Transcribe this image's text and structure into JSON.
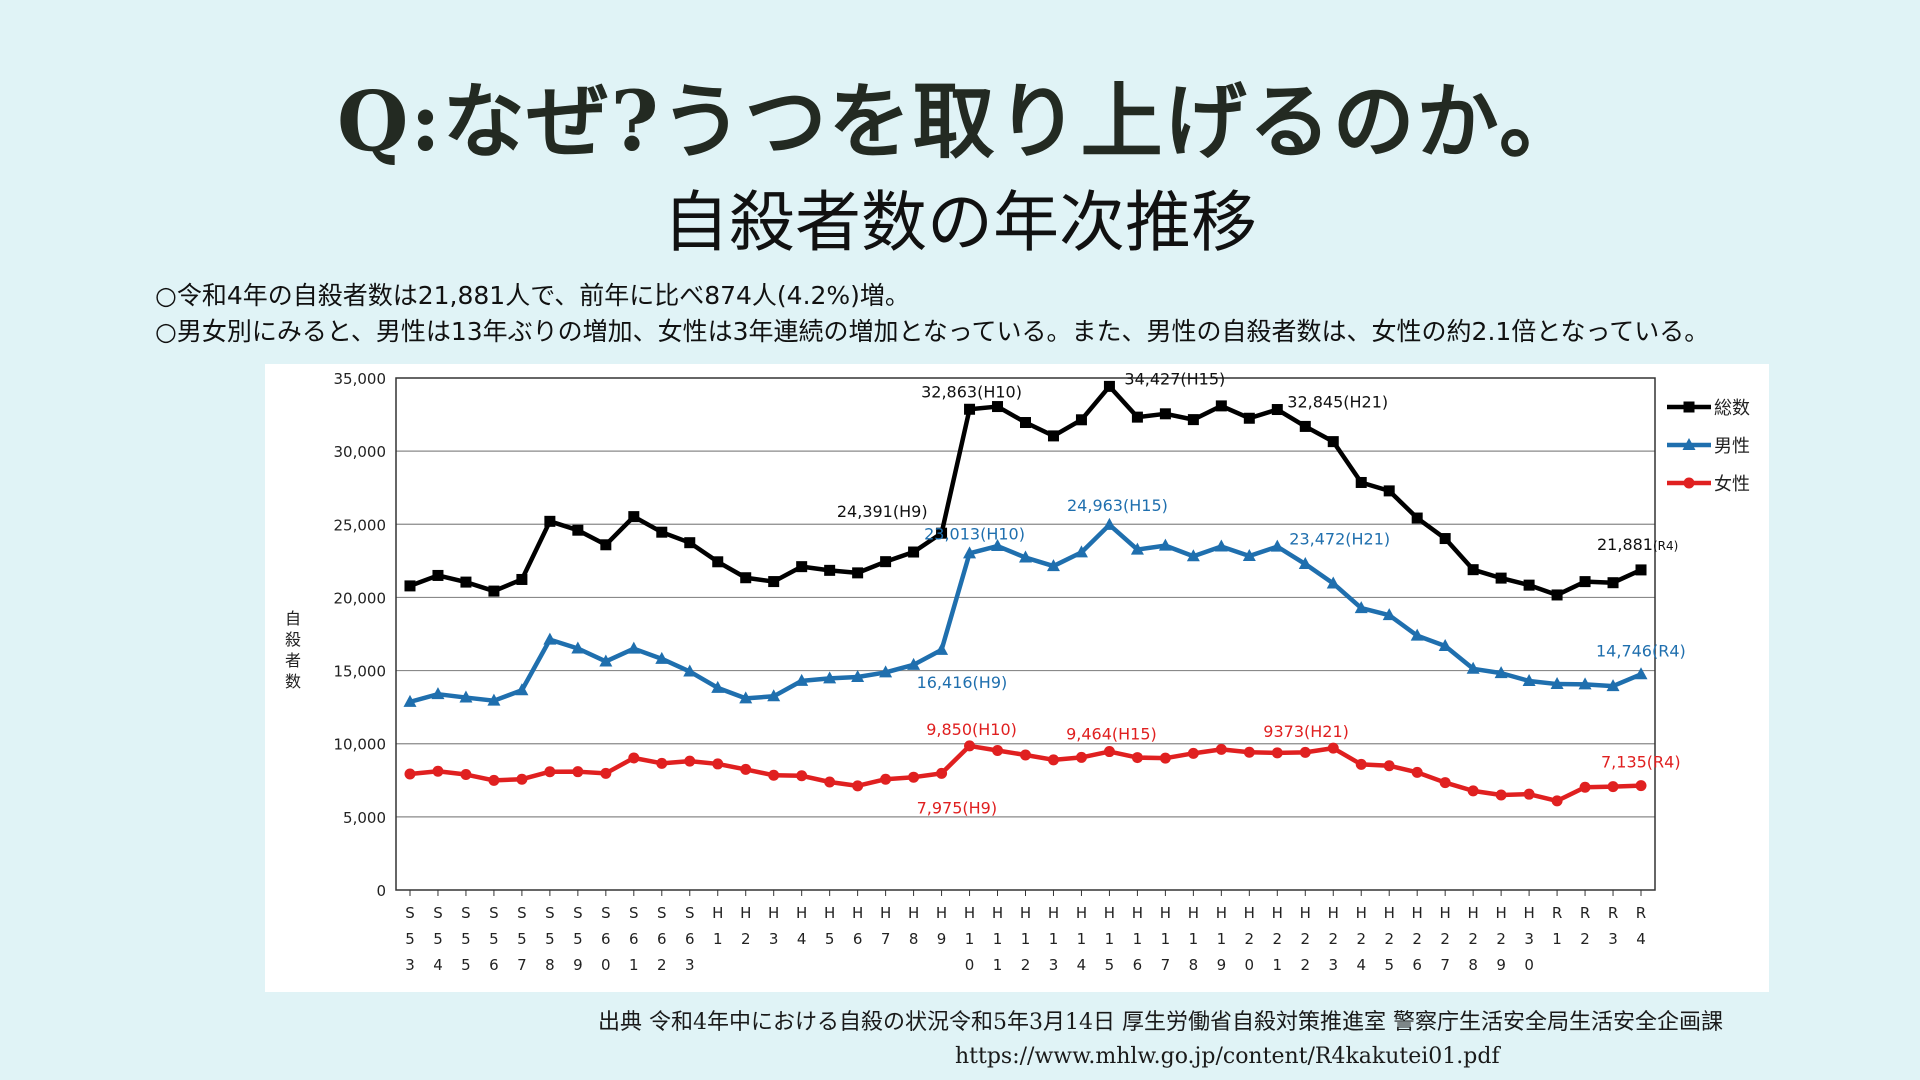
{
  "slide": {
    "title": "Q:なぜ?うつを取り上げるのか。",
    "heading": "自殺者数の年次推移",
    "summary": [
      "○令和4年の自殺者数は21,881人で、前年に比べ874人(4.2%)増。",
      "○男女別にみると、男性は13年ぶりの増加、女性は3年連続の増加となっている。また、男性の自殺者数は、女性の約2.1倍となっている。"
    ],
    "source_line": "出典 令和4年中における自殺の状況令和5年3月14日 厚生労働省自殺対策推進室 警察庁生活安全局生活安全企画課",
    "source_url": "https://www.mhlw.go.jp/content/R4kakutei01.pdf"
  },
  "chart_data": {
    "type": "line",
    "ylabel": "自殺者数",
    "ylim": [
      0,
      35000
    ],
    "yticks": [
      "0",
      "5,000",
      "10,000",
      "15,000",
      "20,000",
      "25,000",
      "30,000",
      "35,000"
    ],
    "grid": true,
    "legend_position": "right",
    "categories": [
      "S53",
      "S54",
      "S55",
      "S56",
      "S57",
      "S58",
      "S59",
      "S60",
      "S61",
      "S62",
      "S63",
      "H1",
      "H2",
      "H3",
      "H4",
      "H5",
      "H6",
      "H7",
      "H8",
      "H9",
      "H10",
      "H11",
      "H12",
      "H13",
      "H14",
      "H15",
      "H16",
      "H17",
      "H18",
      "H19",
      "H20",
      "H21",
      "H22",
      "H23",
      "H24",
      "H25",
      "H26",
      "H27",
      "H28",
      "H29",
      "H30",
      "R1",
      "R2",
      "R3",
      "R4"
    ],
    "series": [
      {
        "name": "総数",
        "color": "#000000",
        "marker": "square",
        "values": [
          20788,
          21503,
          21048,
          20434,
          21228,
          25202,
          24596,
          23599,
          25524,
          24460,
          23742,
          22436,
          21346,
          21084,
          22104,
          21851,
          21679,
          22445,
          23104,
          24391,
          32863,
          33048,
          31957,
          31042,
          32143,
          34427,
          32325,
          32552,
          32155,
          33093,
          32249,
          32845,
          31690,
          30651,
          27858,
          27283,
          25427,
          24025,
          21897,
          21321,
          20840,
          20169,
          21081,
          21007,
          21881
        ]
      },
      {
        "name": "男性",
        "color": "#1f6fae",
        "marker": "triangle",
        "values": [
          12859,
          13386,
          13155,
          12942,
          13654,
          17116,
          16508,
          15624,
          16497,
          15802,
          14934,
          13818,
          13102,
          13242,
          14296,
          14468,
          14560,
          14874,
          15393,
          16416,
          23013,
          23512,
          22727,
          22144,
          23080,
          24963,
          23272,
          23540,
          22813,
          23478,
          22831,
          23472,
          22283,
          20955,
          19273,
          18787,
          17386,
          16681,
          15121,
          14826,
          14290,
          14078,
          14055,
          13939,
          14746
        ]
      },
      {
        "name": "女性",
        "color": "#e02020",
        "marker": "circle",
        "values": [
          7929,
          8117,
          7893,
          7492,
          7574,
          8086,
          8088,
          7975,
          9027,
          8658,
          8808,
          8618,
          8244,
          7842,
          7808,
          7383,
          7119,
          7571,
          7711,
          7975,
          9850,
          9536,
          9230,
          8898,
          9063,
          9464,
          9053,
          9012,
          9342,
          9615,
          9418,
          9373,
          9407,
          9696,
          8585,
          8496,
          8041,
          7344,
          6776,
          6495,
          6550,
          6091,
          7026,
          7068,
          7135
        ]
      }
    ],
    "annotations": [
      {
        "series": "総数",
        "category": "H9",
        "text": "24,391(H9)"
      },
      {
        "series": "総数",
        "category": "H10",
        "text": "32,863(H10)"
      },
      {
        "series": "総数",
        "category": "H15",
        "text": "34,427(H15)"
      },
      {
        "series": "総数",
        "category": "H21",
        "text": "32,845(H21)"
      },
      {
        "series": "総数",
        "category": "R4",
        "text": "21,881",
        "suffix": "(R4)"
      },
      {
        "series": "男性",
        "category": "H10",
        "text": "23,013(H10)"
      },
      {
        "series": "男性",
        "category": "H15",
        "text": "24,963(H15)"
      },
      {
        "series": "男性",
        "category": "H21",
        "text": "23,472(H21)"
      },
      {
        "series": "男性",
        "category": "H9",
        "text": "16,416(H9)"
      },
      {
        "series": "男性",
        "category": "R4",
        "text": "14,746(R4)"
      },
      {
        "series": "女性",
        "category": "H10",
        "text": "9,850(H10)"
      },
      {
        "series": "女性",
        "category": "H15",
        "text": "9,464(H15)"
      },
      {
        "series": "女性",
        "category": "H21",
        "text": "9373(H21)"
      },
      {
        "series": "女性",
        "category": "H9",
        "text": "7,975(H9)"
      },
      {
        "series": "女性",
        "category": "R4",
        "text": "7,135(R4)"
      }
    ]
  }
}
